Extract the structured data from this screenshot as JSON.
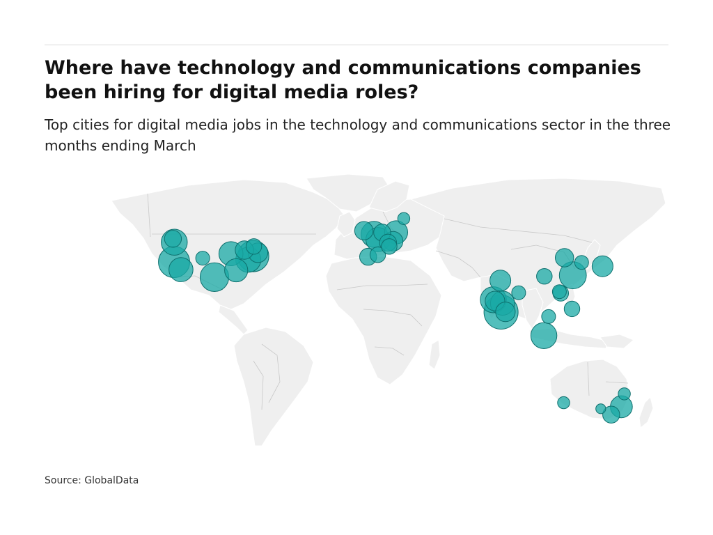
{
  "header": {
    "title": "Where have technology and communications companies been hiring for digital media roles?",
    "subtitle": "Top cities for digital media jobs in the technology and communications sector in the three months ending March"
  },
  "footer": {
    "source": "Source: GlobalData"
  },
  "colors": {
    "land": "#efefef",
    "border": "#c8c8c8",
    "bubble": "#1aa9a6",
    "bubble_edge": "#0d6f6d",
    "text": "#111111"
  },
  "map": {
    "type": "world-bubble-map",
    "bubbles": [
      {
        "lon": -122.4,
        "lat": 37.8,
        "size": 20
      },
      {
        "lon": -118.2,
        "lat": 34.0,
        "size": 12
      },
      {
        "lon": -122.3,
        "lat": 47.6,
        "size": 14
      },
      {
        "lon": -123.1,
        "lat": 49.3,
        "size": 6
      },
      {
        "lon": -97.7,
        "lat": 30.3,
        "size": 17
      },
      {
        "lon": -87.6,
        "lat": 41.9,
        "size": 12
      },
      {
        "lon": -84.4,
        "lat": 33.7,
        "size": 11
      },
      {
        "lon": -74.0,
        "lat": 40.7,
        "size": 20
      },
      {
        "lon": -77.0,
        "lat": 38.9,
        "size": 13
      },
      {
        "lon": -71.1,
        "lat": 42.4,
        "size": 8
      },
      {
        "lon": -79.4,
        "lat": 43.7,
        "size": 7
      },
      {
        "lon": -73.6,
        "lat": 45.5,
        "size": 5
      },
      {
        "lon": -104.9,
        "lat": 39.7,
        "size": 4
      },
      {
        "lon": -0.1,
        "lat": 51.5,
        "size": 14
      },
      {
        "lon": 2.3,
        "lat": 48.9,
        "size": 12
      },
      {
        "lon": 4.9,
        "lat": 52.4,
        "size": 6
      },
      {
        "lon": 13.4,
        "lat": 52.5,
        "size": 11
      },
      {
        "lon": 11.6,
        "lat": 48.1,
        "size": 8
      },
      {
        "lon": 8.5,
        "lat": 47.4,
        "size": 6
      },
      {
        "lon": -3.7,
        "lat": 40.4,
        "size": 6
      },
      {
        "lon": 2.2,
        "lat": 41.4,
        "size": 5
      },
      {
        "lon": 9.2,
        "lat": 45.5,
        "size": 5
      },
      {
        "lon": 18.1,
        "lat": 59.3,
        "size": 3
      },
      {
        "lon": -6.3,
        "lat": 53.3,
        "size": 7
      },
      {
        "lon": 72.9,
        "lat": 19.1,
        "size": 14
      },
      {
        "lon": 77.6,
        "lat": 13.0,
        "size": 24
      },
      {
        "lon": 78.5,
        "lat": 17.4,
        "size": 12
      },
      {
        "lon": 77.2,
        "lat": 28.6,
        "size": 9
      },
      {
        "lon": 73.9,
        "lat": 18.5,
        "size": 8
      },
      {
        "lon": 80.3,
        "lat": 13.1,
        "size": 8
      },
      {
        "lon": 88.4,
        "lat": 22.6,
        "size": 4
      },
      {
        "lon": 103.8,
        "lat": 1.35,
        "size": 14
      },
      {
        "lon": 121.5,
        "lat": 31.2,
        "size": 15
      },
      {
        "lon": 116.4,
        "lat": 39.9,
        "size": 7
      },
      {
        "lon": 114.1,
        "lat": 22.3,
        "size": 5
      },
      {
        "lon": 121.0,
        "lat": 14.6,
        "size": 5
      },
      {
        "lon": 126.9,
        "lat": 37.6,
        "size": 4
      },
      {
        "lon": 139.7,
        "lat": 35.7,
        "size": 9
      },
      {
        "lon": 113.3,
        "lat": 23.1,
        "size": 4
      },
      {
        "lon": 104.1,
        "lat": 30.7,
        "size": 5
      },
      {
        "lon": 106.7,
        "lat": 10.8,
        "size": 4
      },
      {
        "lon": 151.2,
        "lat": -33.9,
        "size": 10
      },
      {
        "lon": 145.0,
        "lat": -37.8,
        "size": 6
      },
      {
        "lon": 115.9,
        "lat": -31.9,
        "size": 3
      },
      {
        "lon": 153.0,
        "lat": -27.5,
        "size": 3
      },
      {
        "lon": 138.6,
        "lat": -34.9,
        "size": 2
      }
    ]
  }
}
